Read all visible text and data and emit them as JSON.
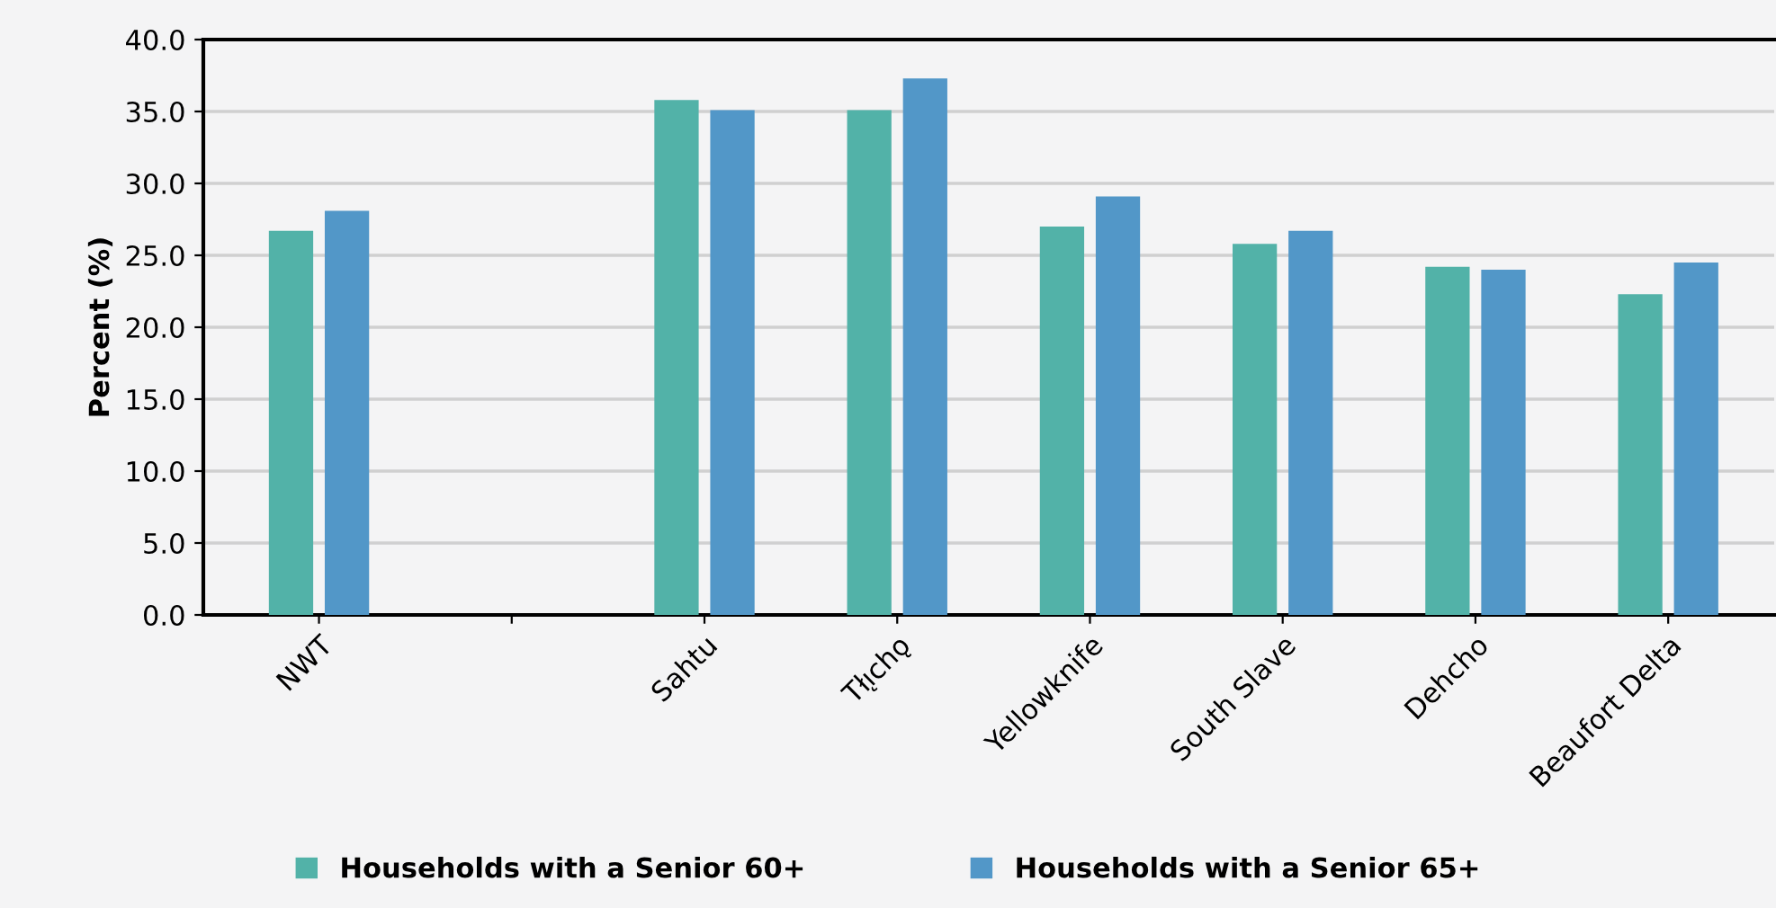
{
  "chart_data": {
    "type": "bar",
    "ylabel": "Percent (%)",
    "categories": [
      "NWT",
      null,
      "Sahtu",
      "Tłı̨chǫ",
      "Yellowknife",
      "South Slave",
      "Dehcho",
      "Beaufort Delta"
    ],
    "series": [
      {
        "name": "Households with a Senior 60+",
        "color": "#52b2a8",
        "values": [
          26.7,
          null,
          35.8,
          35.1,
          27.0,
          25.8,
          24.2,
          22.3
        ]
      },
      {
        "name": "Households with a Senior 65+",
        "color": "#5297c8",
        "values": [
          28.1,
          null,
          35.1,
          37.3,
          29.1,
          26.7,
          24.0,
          24.5
        ]
      }
    ],
    "ylim": [
      0,
      40
    ],
    "yticks": [
      {
        "value": 0,
        "label": "0.0"
      },
      {
        "value": 5,
        "label": "5.0"
      },
      {
        "value": 10,
        "label": "10.0"
      },
      {
        "value": 15,
        "label": "15.0"
      },
      {
        "value": 20,
        "label": "20.0"
      },
      {
        "value": 25,
        "label": "25.0"
      },
      {
        "value": 30,
        "label": "30.0"
      },
      {
        "value": 35,
        "label": "35.0"
      },
      {
        "value": 40,
        "label": "40.0"
      }
    ],
    "grid": "y",
    "legend": "bottom"
  }
}
